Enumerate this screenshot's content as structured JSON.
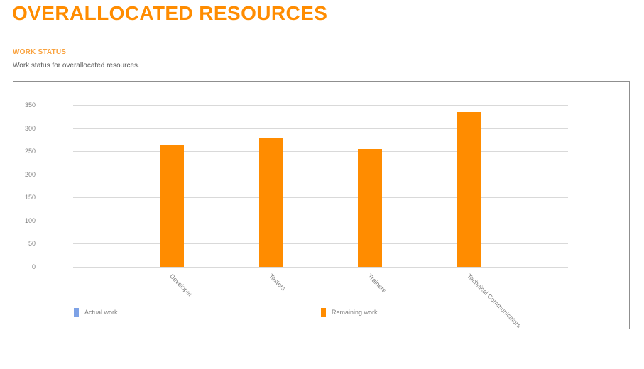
{
  "header": {
    "title": "OVERALLOCATED RESOURCES"
  },
  "section": {
    "heading": "WORK STATUS",
    "description": "Work status for overallocated resources."
  },
  "colors": {
    "title_orange": "#FF8C00",
    "heading_orange": "#F9A13C",
    "description_gray": "#595959",
    "axis_text_gray": "#848484",
    "legend_text_gray": "#7F7F7F",
    "gridline_gray": "#D9D9D9",
    "panel_border_gray": "#8F8F8F",
    "bar_orange": "#FF8C00",
    "actual_work_blue": "#7EA2E6"
  },
  "chart_data": {
    "type": "bar",
    "title": "",
    "xlabel": "",
    "ylabel": "",
    "categories": [
      "Developer",
      "Testers",
      "Trainers",
      "Technical Communicators"
    ],
    "series": [
      {
        "name": "Actual work",
        "color": "#7EA2E6",
        "values": [
          0,
          0,
          0,
          0
        ]
      },
      {
        "name": "Remaining work",
        "color": "#FF8C00",
        "values": [
          263,
          280,
          255,
          335
        ]
      }
    ],
    "ylim": [
      0,
      350
    ],
    "ytick_step": 50,
    "grid": "horizontal",
    "legend_position": "bottom"
  }
}
